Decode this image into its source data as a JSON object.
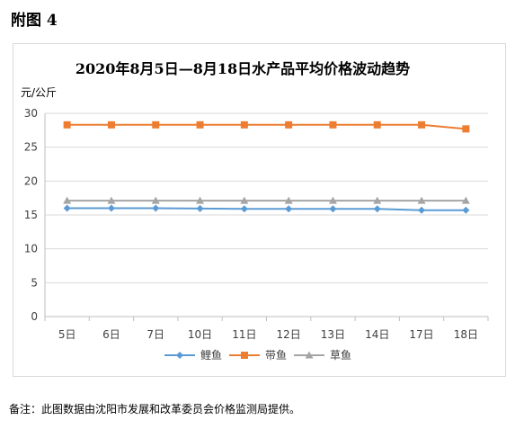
{
  "page": {
    "heading": "附图 4",
    "footnote": "备注：此图数据由沈阳市发展和改革委员会价格监测局提供。"
  },
  "chart_data": {
    "type": "line",
    "title": "2020年8月5日—8月18日水产品平均价格波动趋势",
    "ylabel": "元/公斤",
    "xlabel": "",
    "categories": [
      "5日",
      "6日",
      "7日",
      "10日",
      "11日",
      "12日",
      "13日",
      "14日",
      "17日",
      "18日"
    ],
    "ylim": [
      0,
      30
    ],
    "yticks": [
      0,
      5,
      10,
      15,
      20,
      25,
      30
    ],
    "grid": true,
    "legend_position": "bottom",
    "series": [
      {
        "name": "鲤鱼",
        "color": "#5b9bd5",
        "marker": "diamond",
        "values": [
          16.0,
          16.0,
          16.0,
          15.95,
          15.9,
          15.9,
          15.9,
          15.9,
          15.7,
          15.7
        ]
      },
      {
        "name": "带鱼",
        "color": "#ed7d31",
        "marker": "square",
        "values": [
          28.3,
          28.3,
          28.3,
          28.3,
          28.3,
          28.3,
          28.3,
          28.3,
          28.3,
          27.7
        ]
      },
      {
        "name": "草鱼",
        "color": "#a5a5a5",
        "marker": "triangle",
        "values": [
          17.1,
          17.1,
          17.1,
          17.1,
          17.1,
          17.1,
          17.1,
          17.1,
          17.1,
          17.1
        ]
      }
    ]
  }
}
